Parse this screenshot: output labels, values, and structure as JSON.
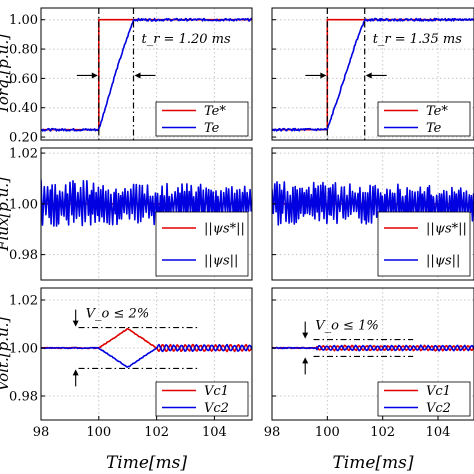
{
  "chart_data": [
    {
      "type": "line",
      "panel": "torque",
      "column": "left",
      "ylabel": "Torq.[p.u.]",
      "xlim": [
        98,
        105.3
      ],
      "ylim": [
        0.18,
        1.08
      ],
      "yticks": [
        "0.20",
        "0.40",
        "0.60",
        "0.80",
        "1.00"
      ],
      "ytick_values": [
        0.2,
        0.4,
        0.6,
        0.8,
        1.0
      ],
      "series": [
        {
          "name": "T_e^*",
          "color": "#e00000",
          "x": [
            98,
            100,
            100,
            105.3
          ],
          "y": [
            0.25,
            0.25,
            1.0,
            1.0
          ]
        },
        {
          "name": "T_e",
          "color": "#0000e0",
          "x": [
            98,
            100,
            100.3,
            100.6,
            100.9,
            101.2,
            105.3
          ],
          "y": [
            0.25,
            0.25,
            0.45,
            0.65,
            0.83,
            1.0,
            1.0
          ],
          "noise": 0.008
        }
      ],
      "vlines": [
        100.0,
        101.2
      ],
      "annotation": "t_r = 1.20 ms"
    },
    {
      "type": "line",
      "panel": "torque",
      "column": "right",
      "ylabel": "",
      "xlim": [
        98,
        105.3
      ],
      "ylim": [
        0.18,
        1.08
      ],
      "yticks": [
        "0.20",
        "0.40",
        "0.60",
        "0.80",
        "1.00"
      ],
      "ytick_values": [
        0.2,
        0.4,
        0.6,
        0.8,
        1.0
      ],
      "series": [
        {
          "name": "T_e^*",
          "color": "#e00000",
          "x": [
            98,
            100,
            100,
            105.3
          ],
          "y": [
            0.25,
            0.25,
            1.0,
            1.0
          ]
        },
        {
          "name": "T_e",
          "color": "#0000e0",
          "x": [
            98,
            100,
            100.35,
            100.7,
            101.0,
            101.35,
            105.3
          ],
          "y": [
            0.25,
            0.25,
            0.45,
            0.65,
            0.83,
            1.0,
            1.0
          ],
          "noise": 0.008
        }
      ],
      "vlines": [
        100.0,
        101.35
      ],
      "annotation": "t_r = 1.35 ms"
    },
    {
      "type": "line",
      "panel": "flux",
      "column": "left",
      "ylabel": "Flux[p.u.]",
      "xlim": [
        98,
        105.3
      ],
      "ylim": [
        0.97,
        1.022
      ],
      "yticks": [
        "0.98",
        "1.00",
        "1.02"
      ],
      "ytick_values": [
        0.98,
        1.0,
        1.02
      ],
      "series": [
        {
          "name": "||ψ_s^*||",
          "color": "#e00000",
          "x": [
            98,
            105.3
          ],
          "y": [
            1.0,
            1.0
          ]
        },
        {
          "name": "||ψ_s||",
          "color": "#0000e0",
          "oscillation": {
            "center": 1.0,
            "amp_start": 0.01,
            "amp_end": 0.007,
            "period": 0.09
          }
        }
      ]
    },
    {
      "type": "line",
      "panel": "flux",
      "column": "right",
      "ylabel": "",
      "xlim": [
        98,
        105.3
      ],
      "ylim": [
        0.97,
        1.022
      ],
      "yticks": [
        "0.98",
        "1.00",
        "1.02"
      ],
      "ytick_values": [
        0.98,
        1.0,
        1.02
      ],
      "series": [
        {
          "name": "||ψ_s^*||",
          "color": "#e00000",
          "x": [
            98,
            105.3
          ],
          "y": [
            1.0,
            1.0
          ]
        },
        {
          "name": "||ψ_s||",
          "color": "#0000e0",
          "oscillation": {
            "center": 1.0,
            "amp_start": 0.009,
            "amp_end": 0.007,
            "period": 0.09
          }
        }
      ]
    },
    {
      "type": "line",
      "panel": "voltage",
      "column": "left",
      "ylabel": "Volt.[p.u.]",
      "xlabel": "Time[ms]",
      "xlim": [
        98,
        105.3
      ],
      "ylim": [
        0.97,
        1.025
      ],
      "xticks": [
        "98",
        "100",
        "102",
        "104"
      ],
      "xtick_values": [
        98,
        100,
        102,
        104
      ],
      "yticks": [
        "0.98",
        "1.00",
        "1.02"
      ],
      "ytick_values": [
        0.98,
        1.0,
        1.02
      ],
      "series": [
        {
          "name": "V_c1",
          "color": "#e00000",
          "x": [
            98,
            100,
            101,
            102,
            102.5,
            105.3
          ],
          "y": [
            1.0,
            1.0,
            1.008,
            1.0,
            1.0,
            1.0
          ]
        },
        {
          "name": "V_c2",
          "color": "#0000e0",
          "x": [
            98,
            100,
            101,
            102,
            102.5,
            105.3
          ],
          "y": [
            1.0,
            1.0,
            0.992,
            1.0,
            1.0,
            1.0
          ]
        }
      ],
      "band": [
        0.9915,
        1.0085
      ],
      "annotation": "V_o ≤ 2%"
    },
    {
      "type": "line",
      "panel": "voltage",
      "column": "right",
      "ylabel": "",
      "xlabel": "Time[ms]",
      "xlim": [
        98,
        105.3
      ],
      "ylim": [
        0.97,
        1.025
      ],
      "xticks": [
        "98",
        "100",
        "102",
        "104"
      ],
      "xtick_values": [
        98,
        100,
        102,
        104
      ],
      "yticks": [
        "0.98",
        "1.00",
        "1.02"
      ],
      "ytick_values": [
        0.98,
        1.0,
        1.02
      ],
      "series": [
        {
          "name": "V_c1",
          "color": "#e00000",
          "x": [
            98,
            105.3
          ],
          "y": [
            1.0,
            1.0
          ]
        },
        {
          "name": "V_c2",
          "color": "#0000e0",
          "x": [
            98,
            105.3
          ],
          "y": [
            1.0,
            1.0
          ]
        }
      ],
      "band": [
        0.9965,
        1.0035
      ],
      "annotation": "V_o ≤ 1%"
    }
  ]
}
